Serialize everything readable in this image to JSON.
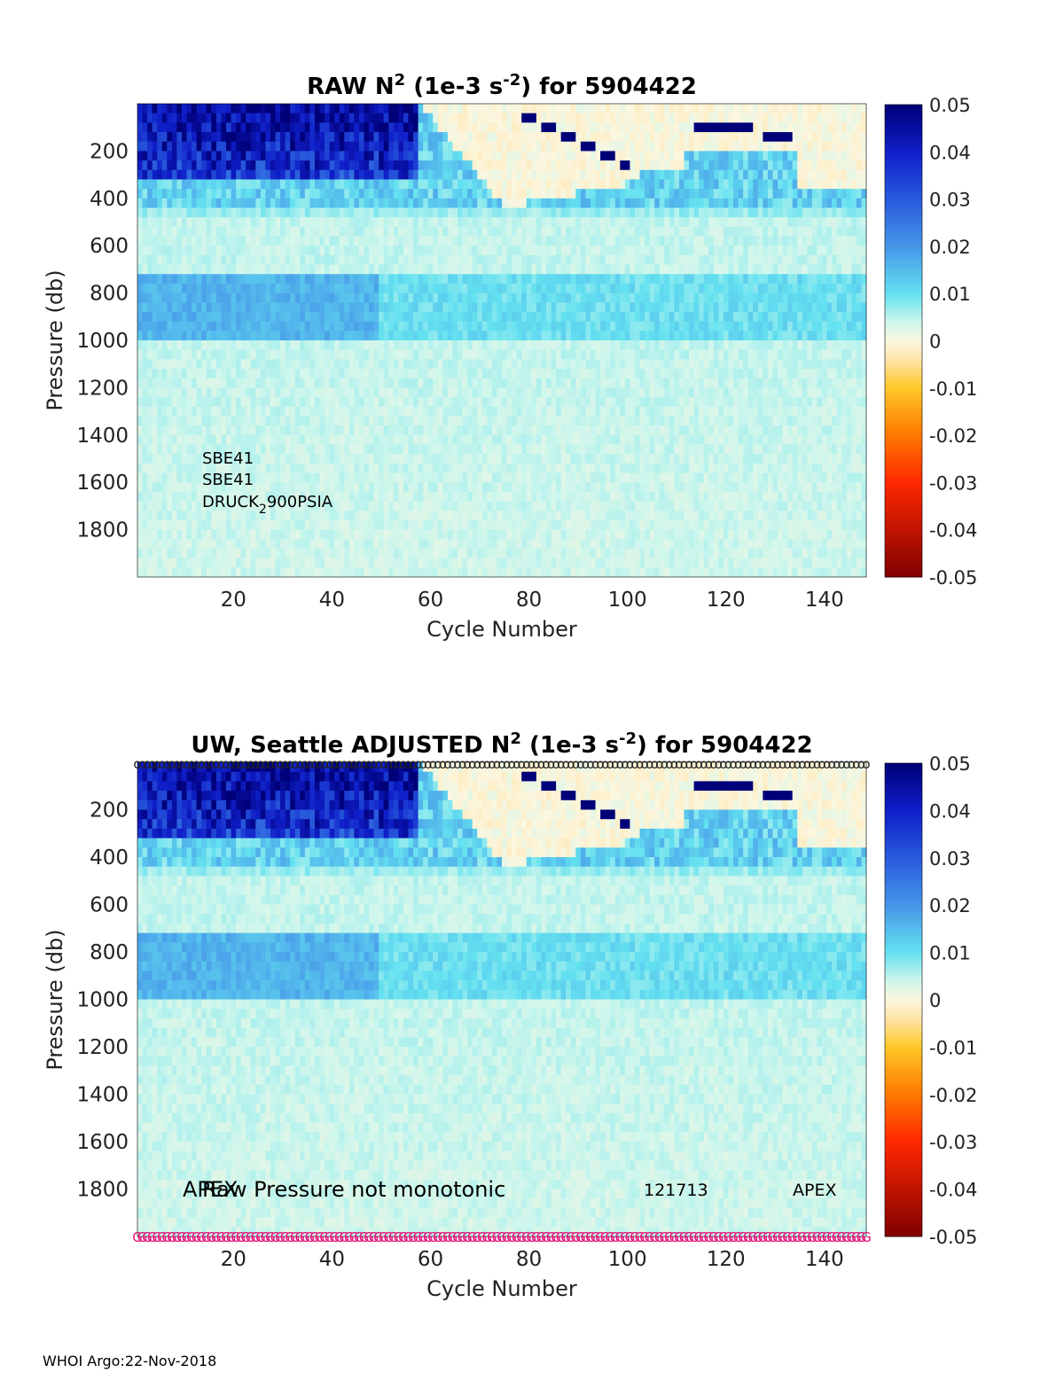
{
  "footer": "WHOI Argo:22-Nov-2018",
  "colorbar": {
    "ticks": [
      "0.05",
      "0.04",
      "0.03",
      "0.02",
      "0.01",
      "0",
      "-0.01",
      "-0.02",
      "-0.03",
      "-0.04",
      "-0.05"
    ],
    "range": [
      -0.05,
      0.05
    ]
  },
  "chart_data": [
    {
      "type": "heatmap",
      "title_main": "RAW N",
      "title_sup": "2",
      "title_mid": " (1e-3 s",
      "title_sup2": "-2",
      "title_end": ") for 5904422",
      "xlabel": "Cycle Number",
      "ylabel": "Pressure (db)",
      "xlim": [
        1,
        148
      ],
      "ylim": [
        0,
        2000
      ],
      "xticks": [
        "20",
        "40",
        "60",
        "80",
        "100",
        "120",
        "140"
      ],
      "yticks": [
        "200",
        "400",
        "600",
        "800",
        "1000",
        "1200",
        "1400",
        "1600",
        "1800"
      ],
      "zlim": [
        -0.05,
        0.05
      ],
      "annotations": [
        "SBE41",
        "SBE41",
        "DRUCK"
      ],
      "annotation_sub": "2",
      "annotation_tail": "900PSIA"
    },
    {
      "type": "heatmap",
      "title_main": "UW, Seattle  ADJUSTED N",
      "title_sup": "2",
      "title_mid": " (1e-3 s",
      "title_sup2": "-2",
      "title_end": ") for 5904422",
      "xlabel": "Cycle Number",
      "ylabel": "Pressure (db)",
      "xlim": [
        1,
        148
      ],
      "ylim": [
        0,
        2000
      ],
      "xticks": [
        "20",
        "40",
        "60",
        "80",
        "100",
        "120",
        "140"
      ],
      "yticks": [
        "200",
        "400",
        "600",
        "800",
        "1000",
        "1200",
        "1400",
        "1600",
        "1800"
      ],
      "zlim": [
        -0.05,
        0.05
      ],
      "annotation_left_a": "APEX",
      "annotation_left_b": "Raw Pressure not monotonic",
      "annotation_mid": "121713",
      "annotation_right": "APEX",
      "qc_marker_top": "o",
      "qc_marker_bottom": "G"
    }
  ]
}
